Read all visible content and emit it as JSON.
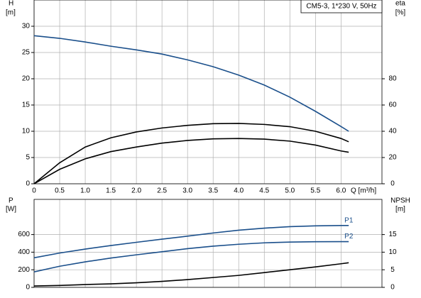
{
  "chart_data": [
    {
      "type": "line",
      "title": "CM5-3, 1*230 V, 50Hz",
      "y_label": "H",
      "y_unit": "[m]",
      "y2_label": "eta",
      "y2_unit": "[%]",
      "x_label": "Q [m³/h]",
      "x": [
        0,
        0.5,
        1,
        1.5,
        2,
        2.5,
        3,
        3.5,
        4,
        4.5,
        5,
        5.5,
        6,
        6.15
      ],
      "xlim": [
        0,
        6.8
      ],
      "xticks": [
        0,
        0.5,
        {
          "value": 1,
          "label": "1.0"
        },
        1.5,
        {
          "value": 2,
          "label": "2.0"
        },
        2.5,
        {
          "value": 3,
          "label": "3.0"
        },
        3.5,
        {
          "value": 4,
          "label": "4.0"
        },
        4.5,
        {
          "value": 5,
          "label": "5.0"
        },
        5.5,
        {
          "value": 6,
          "label": "6.0"
        }
      ],
      "ylim": [
        0,
        35
      ],
      "yticks": [
        0,
        5,
        10,
        15,
        20,
        25,
        30
      ],
      "y2lim": [
        0,
        140
      ],
      "y2ticks": [
        0,
        20,
        40,
        60,
        80
      ],
      "grid": true,
      "series": [
        {
          "color": "#1a4f8b",
          "axis": "y",
          "values": [
            28.2,
            27.7,
            27.0,
            26.2,
            25.5,
            24.7,
            23.6,
            22.3,
            20.7,
            18.8,
            16.5,
            13.8,
            10.9,
            10
          ]
        },
        {
          "color": "#000000",
          "axis": "y2",
          "values": [
            0,
            16,
            28,
            35,
            39.5,
            42.5,
            44.5,
            45.8,
            46,
            45.2,
            43.5,
            40,
            34.5,
            32
          ]
        },
        {
          "color": "#000000",
          "axis": "y2",
          "values": [
            0,
            11,
            19,
            24.5,
            28,
            31,
            33,
            34.2,
            34.5,
            34,
            32.5,
            29.5,
            25,
            24
          ]
        }
      ]
    },
    {
      "type": "line",
      "y_label": "P",
      "y_unit": "[W]",
      "y2_label": "NPSH",
      "y2_unit": "[m]",
      "x": [
        0,
        0.5,
        1,
        1.5,
        2,
        2.5,
        3,
        3.5,
        4,
        4.5,
        5,
        5.5,
        6,
        6.15
      ],
      "xlim": [
        0,
        6.8
      ],
      "ylim": [
        0,
        1000
      ],
      "yticks": [
        0,
        200,
        400,
        600
      ],
      "y2lim": [
        0,
        25
      ],
      "y2ticks": [
        0,
        5,
        10,
        15
      ],
      "grid": true,
      "series": [
        {
          "name": "P1",
          "color": "#1a4f8b",
          "axis": "y",
          "values": [
            336,
            390,
            435,
            475,
            512,
            548,
            582,
            618,
            650,
            673,
            690,
            699,
            703,
            703
          ]
        },
        {
          "name": "P2",
          "color": "#1a4f8b",
          "axis": "y",
          "values": [
            176,
            240,
            290,
            333,
            370,
            405,
            440,
            468,
            490,
            506,
            515,
            519,
            520,
            520
          ]
        },
        {
          "color": "#000000",
          "axis": "y2",
          "values": [
            0.4,
            0.55,
            0.8,
            1.0,
            1.3,
            1.7,
            2.2,
            2.8,
            3.4,
            4.2,
            5.0,
            5.8,
            6.7,
            7.0
          ]
        }
      ]
    }
  ]
}
